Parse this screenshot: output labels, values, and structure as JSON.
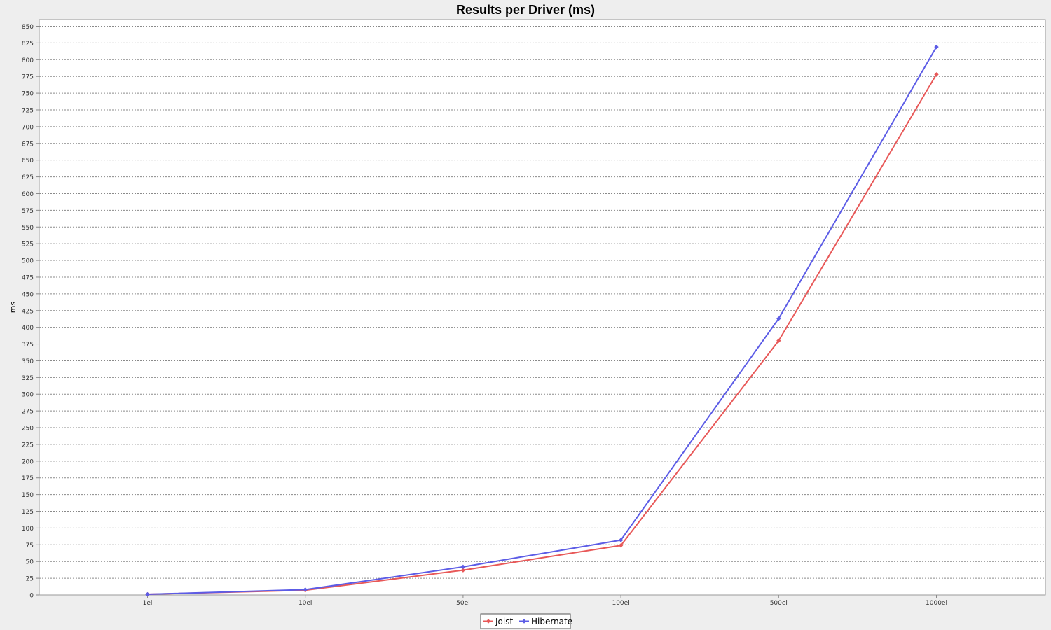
{
  "chart_data": {
    "type": "line",
    "title": "Results per Driver (ms)",
    "xlabel": "",
    "ylabel": "ms",
    "categories": [
      "1ei",
      "10ei",
      "50ei",
      "100ei",
      "500ei",
      "1000ei"
    ],
    "ylim": [
      0,
      850
    ],
    "ytick_step": 25,
    "grid": true,
    "legend_position": "bottom-center",
    "series": [
      {
        "name": "Joist",
        "color": "#e85858",
        "values": [
          1,
          7,
          37,
          74,
          380,
          778
        ]
      },
      {
        "name": "Hibernate",
        "color": "#5c5ce6",
        "values": [
          1,
          8,
          42,
          82,
          413,
          819
        ]
      }
    ]
  }
}
